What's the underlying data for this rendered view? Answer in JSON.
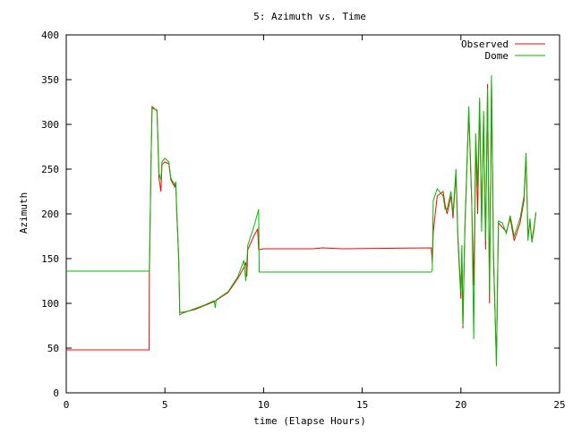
{
  "chart_data": {
    "type": "line",
    "title": "5: Azimuth vs. Time",
    "xlabel": "time (Elapse Hours)",
    "ylabel": "Azimuth",
    "xlim": [
      0,
      25
    ],
    "ylim": [
      0,
      400
    ],
    "x_ticks": [
      "0",
      "5",
      "10",
      "15",
      "20",
      "25"
    ],
    "y_ticks": [
      "0",
      "50",
      "100",
      "150",
      "200",
      "250",
      "300",
      "350",
      "400"
    ],
    "legend_position": "top-right",
    "grid": false,
    "series": [
      {
        "name": "Observed",
        "color": "#ff0000",
        "points": [
          [
            0,
            48
          ],
          [
            4.2,
            48
          ],
          [
            4.21,
            135
          ],
          [
            4.3,
            260
          ],
          [
            4.35,
            320
          ],
          [
            4.6,
            315
          ],
          [
            4.7,
            240
          ],
          [
            4.8,
            225
          ],
          [
            4.85,
            255
          ],
          [
            5.0,
            258
          ],
          [
            5.2,
            256
          ],
          [
            5.3,
            238
          ],
          [
            5.5,
            230
          ],
          [
            5.55,
            235
          ],
          [
            5.6,
            200
          ],
          [
            5.7,
            150
          ],
          [
            5.75,
            90
          ],
          [
            5.9,
            90
          ],
          [
            6.5,
            93
          ],
          [
            7.5,
            102
          ],
          [
            8.2,
            112
          ],
          [
            8.7,
            128
          ],
          [
            9.0,
            140
          ],
          [
            9.1,
            146
          ],
          [
            9.15,
            130
          ],
          [
            9.2,
            160
          ],
          [
            9.5,
            175
          ],
          [
            9.7,
            183
          ],
          [
            9.75,
            160
          ],
          [
            10,
            161
          ],
          [
            12.5,
            161
          ],
          [
            13,
            162
          ],
          [
            14,
            161
          ],
          [
            18.5,
            162
          ],
          [
            18.55,
            145
          ],
          [
            18.6,
            180
          ],
          [
            18.8,
            220
          ],
          [
            19.1,
            225
          ],
          [
            19.2,
            210
          ],
          [
            19.3,
            200
          ],
          [
            19.5,
            220
          ],
          [
            19.6,
            195
          ],
          [
            19.75,
            245
          ],
          [
            19.85,
            170
          ],
          [
            20.0,
            105
          ],
          [
            20.05,
            160
          ],
          [
            20.1,
            72
          ],
          [
            20.2,
            180
          ],
          [
            20.4,
            315
          ],
          [
            20.55,
            210
          ],
          [
            20.65,
            120
          ],
          [
            20.75,
            280
          ],
          [
            20.85,
            200
          ],
          [
            20.95,
            325
          ],
          [
            21.05,
            190
          ],
          [
            21.15,
            310
          ],
          [
            21.25,
            160
          ],
          [
            21.35,
            345
          ],
          [
            21.45,
            100
          ],
          [
            21.55,
            350
          ],
          [
            21.65,
            150
          ],
          [
            21.8,
            35
          ],
          [
            21.9,
            190
          ],
          [
            22.1,
            185
          ],
          [
            22.3,
            180
          ],
          [
            22.5,
            195
          ],
          [
            22.7,
            170
          ],
          [
            23.0,
            190
          ],
          [
            23.2,
            215
          ],
          [
            23.3,
            265
          ],
          [
            23.4,
            175
          ],
          [
            23.5,
            190
          ],
          [
            23.6,
            170
          ],
          [
            23.7,
            185
          ],
          [
            23.8,
            200
          ]
        ]
      },
      {
        "name": "Dome",
        "color": "#00bb00",
        "points": [
          [
            0,
            136
          ],
          [
            4.15,
            136
          ],
          [
            4.22,
            136
          ],
          [
            4.3,
            265
          ],
          [
            4.35,
            318
          ],
          [
            4.6,
            316
          ],
          [
            4.7,
            245
          ],
          [
            4.8,
            238
          ],
          [
            4.85,
            258
          ],
          [
            5.0,
            262
          ],
          [
            5.2,
            258
          ],
          [
            5.3,
            240
          ],
          [
            5.5,
            232
          ],
          [
            5.55,
            236
          ],
          [
            5.6,
            205
          ],
          [
            5.7,
            150
          ],
          [
            5.75,
            87
          ],
          [
            5.9,
            89
          ],
          [
            6.5,
            94
          ],
          [
            7.0,
            98
          ],
          [
            7.5,
            103
          ],
          [
            7.55,
            95
          ],
          [
            7.6,
            104
          ],
          [
            8.2,
            113
          ],
          [
            8.7,
            130
          ],
          [
            9.0,
            148
          ],
          [
            9.1,
            125
          ],
          [
            9.2,
            165
          ],
          [
            9.5,
            185
          ],
          [
            9.75,
            205
          ],
          [
            9.78,
            135
          ],
          [
            10,
            135
          ],
          [
            14,
            135
          ],
          [
            18.5,
            135
          ],
          [
            18.55,
            138
          ],
          [
            18.6,
            215
          ],
          [
            18.8,
            228
          ],
          [
            19.1,
            220
          ],
          [
            19.2,
            205
          ],
          [
            19.3,
            205
          ],
          [
            19.5,
            225
          ],
          [
            19.6,
            200
          ],
          [
            19.75,
            250
          ],
          [
            19.85,
            175
          ],
          [
            20.0,
            112
          ],
          [
            20.05,
            165
          ],
          [
            20.1,
            75
          ],
          [
            20.2,
            185
          ],
          [
            20.4,
            320
          ],
          [
            20.55,
            215
          ],
          [
            20.65,
            60
          ],
          [
            20.75,
            290
          ],
          [
            20.85,
            230
          ],
          [
            20.95,
            330
          ],
          [
            21.05,
            180
          ],
          [
            21.15,
            315
          ],
          [
            21.25,
            170
          ],
          [
            21.35,
            340
          ],
          [
            21.45,
            110
          ],
          [
            21.55,
            355
          ],
          [
            21.65,
            160
          ],
          [
            21.8,
            30
          ],
          [
            21.9,
            192
          ],
          [
            22.1,
            190
          ],
          [
            22.3,
            178
          ],
          [
            22.5,
            198
          ],
          [
            22.7,
            175
          ],
          [
            23.0,
            195
          ],
          [
            23.2,
            220
          ],
          [
            23.3,
            268
          ],
          [
            23.4,
            170
          ],
          [
            23.5,
            195
          ],
          [
            23.6,
            168
          ],
          [
            23.7,
            182
          ],
          [
            23.8,
            202
          ]
        ]
      }
    ]
  }
}
